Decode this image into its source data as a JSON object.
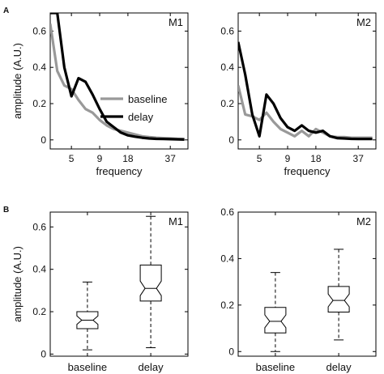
{
  "panel_labels": [
    "A",
    "B"
  ],
  "chart_data": [
    {
      "type": "line",
      "title": "M1",
      "xlabel": "frequency",
      "ylabel": "amplitude (A.U.)",
      "x_tick_labels": [
        "5",
        "9",
        "18",
        "37"
      ],
      "y_ticks": [
        0,
        0.2,
        0.4,
        0.6
      ],
      "ylim": [
        -0.05,
        0.7
      ],
      "legend": "center-right",
      "x_index": [
        1,
        2,
        3,
        4,
        5,
        6,
        7,
        8,
        9,
        10,
        11,
        12,
        13,
        14,
        15,
        16,
        17,
        18,
        19,
        20
      ],
      "series": [
        {
          "name": "baseline",
          "color": "#999999",
          "values": [
            0.64,
            0.38,
            0.3,
            0.28,
            0.22,
            0.17,
            0.15,
            0.11,
            0.08,
            0.06,
            0.05,
            0.04,
            0.03,
            0.02,
            0.015,
            0.012,
            0.01,
            0.008,
            0.006,
            0.005
          ]
        },
        {
          "name": "delay",
          "color": "#000000",
          "values": [
            0.7,
            0.7,
            0.4,
            0.24,
            0.34,
            0.32,
            0.25,
            0.17,
            0.1,
            0.07,
            0.04,
            0.025,
            0.018,
            0.012,
            0.008,
            0.006,
            0.005,
            0.004,
            0.003,
            0.002
          ]
        }
      ]
    },
    {
      "type": "line",
      "title": "M2",
      "xlabel": "frequency",
      "ylabel": "",
      "x_tick_labels": [
        "5",
        "9",
        "18",
        "37"
      ],
      "y_ticks": [
        0,
        0.2,
        0.4,
        0.6
      ],
      "ylim": [
        -0.05,
        0.7
      ],
      "x_index": [
        1,
        2,
        3,
        4,
        5,
        6,
        7,
        8,
        9,
        10,
        11,
        12,
        13,
        14,
        15,
        16,
        17,
        18,
        19,
        20
      ],
      "series": [
        {
          "name": "baseline",
          "color": "#999999",
          "values": [
            0.3,
            0.14,
            0.13,
            0.11,
            0.15,
            0.1,
            0.06,
            0.04,
            0.02,
            0.05,
            0.02,
            0.06,
            0.04,
            0.02,
            0.015,
            0.015,
            0.012,
            0.012,
            0.012,
            0.012
          ]
        },
        {
          "name": "delay",
          "color": "#000000",
          "values": [
            0.54,
            0.36,
            0.14,
            0.02,
            0.25,
            0.2,
            0.12,
            0.07,
            0.05,
            0.08,
            0.05,
            0.04,
            0.05,
            0.02,
            0.01,
            0.008,
            0.006,
            0.005,
            0.005,
            0.005
          ]
        }
      ]
    },
    {
      "type": "box",
      "title": "M1",
      "xlabel": "",
      "ylabel": "amplitude (A.U.)",
      "categories": [
        "baseline",
        "delay"
      ],
      "y_ticks": [
        0,
        0.2,
        0.4,
        0.6
      ],
      "ylim": [
        -0.01,
        0.67
      ],
      "boxes": [
        {
          "whisker_low": 0.02,
          "q1": 0.12,
          "median": 0.16,
          "q3": 0.2,
          "whisker_high": 0.34
        },
        {
          "whisker_low": 0.03,
          "q1": 0.25,
          "median": 0.31,
          "q3": 0.42,
          "whisker_high": 0.65
        }
      ]
    },
    {
      "type": "box",
      "title": "M2",
      "xlabel": "",
      "ylabel": "",
      "categories": [
        "baseline",
        "delay"
      ],
      "y_ticks": [
        0,
        0.2,
        0.4,
        0.6
      ],
      "ylim": [
        -0.02,
        0.6
      ],
      "boxes": [
        {
          "whisker_low": 0.0,
          "q1": 0.08,
          "median": 0.13,
          "q3": 0.19,
          "whisker_high": 0.34
        },
        {
          "whisker_low": 0.05,
          "q1": 0.17,
          "median": 0.22,
          "q3": 0.28,
          "whisker_high": 0.44
        }
      ]
    }
  ]
}
